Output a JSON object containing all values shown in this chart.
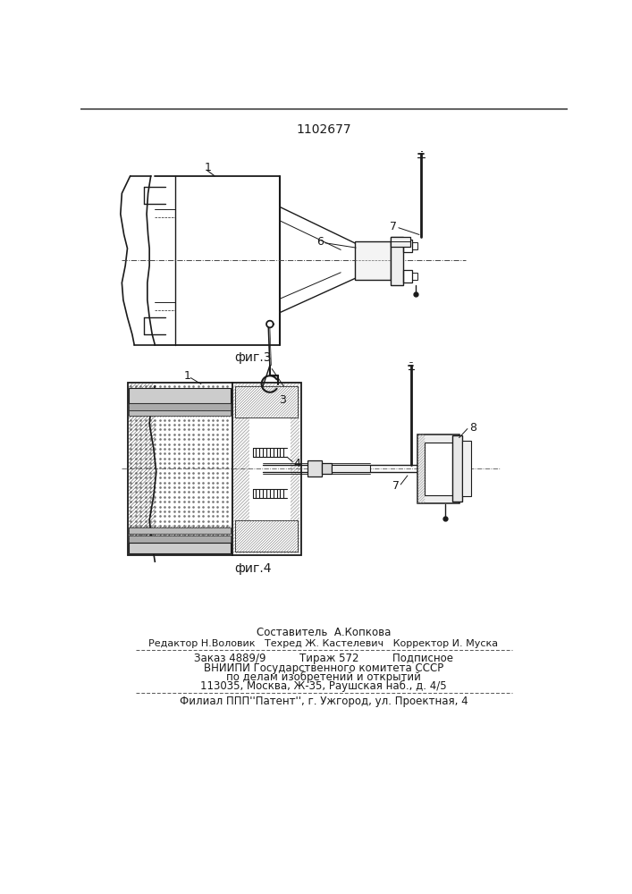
{
  "title": "1102677",
  "fig3_label": "фиг.3",
  "fig4_label": "фиг.4",
  "footer_line1": "Составитель  А.Копкова",
  "footer_line2": "Редактор Н.Воловик   Техред Ж. Кастелевич   Корректор И. Муска",
  "footer_line3": "Заказ 4889/9          Тираж 572          Подписное",
  "footer_line4": "ВНИИПИ Государственного комитета СССР",
  "footer_line5": "по делам изобретений и открытий",
  "footer_line6": "113035, Москва, Ж-35, Раушская наб., д. 4/5",
  "footer_line7": "Филиал ППП''Патент'', г. Ужгород, ул. Проектная, 4",
  "bg_color": "#ffffff",
  "line_color": "#1a1a1a",
  "text_color": "#1a1a1a"
}
